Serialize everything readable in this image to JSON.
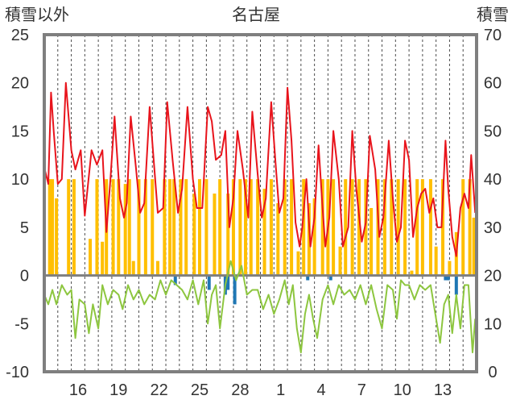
{
  "chart_data": {
    "type": "bar+line",
    "title": "名古屋",
    "left_axis_label": "積雪以外",
    "right_axis_label": "積雪",
    "left_ylim": [
      -10,
      25
    ],
    "left_ticks": [
      25,
      20,
      15,
      10,
      5,
      0,
      -5,
      -10
    ],
    "right_ylim": [
      0,
      70
    ],
    "right_ticks": [
      70,
      60,
      50,
      40,
      30,
      20,
      10,
      0
    ],
    "x_tick_labels": [
      "16",
      "19",
      "22",
      "25",
      "28",
      "1",
      "4",
      "7",
      "10",
      "13"
    ],
    "x_tick_days": [
      3,
      6,
      9,
      12,
      15,
      18,
      21,
      24,
      27,
      30
    ],
    "days": 32,
    "grid": "vertical-dashed-daily",
    "colors": {
      "max_temp": "#e8141c",
      "min_temp": "#8dc63f",
      "sunshine": "#ffbf00",
      "precip": "#1f77b4",
      "snow": "#7030a0",
      "frame": "#7f7f7f"
    },
    "series": [
      {
        "key": "max_temp",
        "axis": "left",
        "kind": "line",
        "x": [
          0.0,
          0.3,
          0.5,
          0.7,
          1.0,
          1.3,
          1.6,
          2.0,
          2.3,
          2.7,
          3.0,
          3.5,
          3.9,
          4.3,
          4.6,
          4.9,
          5.2,
          5.6,
          5.9,
          6.1,
          6.4,
          6.8,
          7.1,
          7.4,
          7.8,
          8.1,
          8.4,
          8.8,
          9.1,
          9.5,
          9.9,
          10.2,
          10.6,
          11.0,
          11.3,
          11.7,
          12.1,
          12.4,
          12.7,
          13.1,
          13.4,
          13.7,
          14.0,
          14.3,
          14.7,
          15.1,
          15.4,
          15.8,
          16.1,
          16.4,
          16.8,
          17.1,
          17.4,
          17.7,
          18.0,
          18.3,
          18.6,
          18.9,
          19.1,
          19.4,
          19.7,
          20.0,
          20.3,
          20.6,
          20.8,
          21.1,
          21.4,
          21.8,
          22.1,
          22.5,
          22.8,
          23.1,
          23.5,
          23.8,
          24.1,
          24.5,
          24.8,
          25.1,
          25.5,
          25.8,
          26.1,
          26.4,
          26.7,
          27.0,
          27.3,
          27.6,
          27.9,
          28.2,
          28.5,
          28.8,
          29.1,
          29.4,
          29.7,
          29.9,
          30.2,
          30.5,
          30.8,
          31.1,
          31.4,
          31.6,
          31.9
        ],
        "values": [
          11.2,
          9.5,
          19.0,
          15,
          9.5,
          10,
          20,
          13,
          11,
          13,
          6.2,
          13,
          11.5,
          13,
          4.5,
          10,
          16.5,
          8,
          6,
          7.5,
          16.5,
          11,
          6.5,
          7.5,
          17.5,
          12,
          6.5,
          7,
          18,
          12,
          6.5,
          9,
          17.5,
          10,
          7,
          7,
          17.5,
          16,
          12,
          12.5,
          15,
          5,
          8,
          15,
          11,
          6,
          17,
          10.5,
          6,
          8,
          18,
          12,
          6.5,
          8,
          19.5,
          14,
          5.5,
          3,
          5,
          10,
          3,
          6,
          13.5,
          7,
          3,
          6,
          15,
          10,
          3,
          5,
          15,
          9,
          3.5,
          5.5,
          14.5,
          11,
          4,
          6,
          14,
          8,
          3.5,
          5,
          14,
          12,
          4,
          7,
          8.5,
          9,
          6.5,
          8,
          5,
          5,
          14,
          9,
          4,
          2,
          7,
          8.5,
          7,
          12.5,
          6.5
        ]
      },
      {
        "key": "min_temp",
        "axis": "left",
        "kind": "line",
        "x": [
          0.0,
          0.3,
          0.6,
          0.9,
          1.3,
          1.7,
          2.0,
          2.3,
          2.6,
          3.0,
          3.3,
          3.6,
          4.0,
          4.3,
          4.7,
          5.1,
          5.5,
          5.8,
          6.2,
          6.6,
          7.0,
          7.4,
          7.8,
          8.2,
          8.6,
          9.0,
          9.4,
          9.8,
          10.2,
          10.6,
          11.0,
          11.4,
          11.8,
          12.1,
          12.4,
          12.7,
          13.0,
          13.4,
          13.8,
          14.2,
          14.6,
          15.0,
          15.4,
          15.8,
          16.2,
          16.6,
          17.0,
          17.4,
          17.8,
          18.1,
          18.4,
          18.7,
          19.0,
          19.3,
          19.6,
          19.9,
          20.2,
          20.6,
          21.0,
          21.4,
          21.8,
          22.2,
          22.6,
          23.0,
          23.4,
          23.8,
          24.2,
          24.6,
          25.0,
          25.4,
          25.8,
          26.1,
          26.4,
          26.7,
          27.0,
          27.4,
          27.8,
          28.2,
          28.6,
          29.0,
          29.3,
          29.6,
          29.9,
          30.2,
          30.5,
          30.8,
          31.1,
          31.4,
          31.7,
          31.9
        ],
        "values": [
          -2,
          -3,
          -1.5,
          -3,
          -1,
          -2,
          -1.5,
          -6.5,
          -2.5,
          -3,
          -6,
          -3,
          -5.5,
          -1,
          -3,
          -1.5,
          -2,
          -3.5,
          -1,
          -2.5,
          -1.5,
          -3,
          -2,
          -2.5,
          -0.5,
          -2,
          -0.5,
          -1,
          -1.5,
          -2.5,
          -0.5,
          -3,
          -0.5,
          -5,
          -2,
          -1,
          -5.5,
          -1,
          1.5,
          -0.5,
          1,
          -2,
          -1.5,
          -1.5,
          -3.5,
          -2,
          -4,
          -2.5,
          -0.5,
          -3,
          -1,
          -5.5,
          -8,
          -4,
          -2,
          -4.5,
          -6.5,
          -2.5,
          -1,
          -3,
          -1,
          -2,
          -1.5,
          -2.5,
          -1,
          -3,
          -1,
          -3.5,
          -5.5,
          -1,
          -1.5,
          -4.5,
          -0.5,
          -1,
          -1,
          -2.5,
          -1,
          -1.5,
          -1,
          -4.5,
          -7,
          -3,
          -2,
          -6,
          -2,
          -5.5,
          -1,
          -1,
          -8,
          -4.5
        ]
      },
      {
        "key": "sunshine",
        "axis": "left",
        "kind": "bar",
        "x": [
          0.4,
          0.6,
          0.9,
          1.8,
          2.2,
          3.4,
          3.9,
          4.3,
          4.6,
          5.1,
          5.5,
          6.0,
          6.3,
          6.6,
          7.0,
          7.5,
          8.0,
          8.4,
          8.9,
          9.3,
          9.6,
          10.1,
          10.5,
          11.1,
          11.5,
          12.0,
          12.6,
          13.0,
          13.6,
          14.0,
          14.5,
          14.9,
          15.3,
          15.8,
          16.3,
          16.8,
          17.3,
          17.8,
          18.3,
          18.8,
          19.2,
          19.6,
          20.0,
          20.6,
          21.0,
          21.4,
          21.9,
          22.3,
          22.8,
          23.3,
          23.8,
          24.2,
          24.7,
          25.2,
          25.7,
          26.2,
          26.7,
          27.2,
          27.6,
          28.0,
          28.6,
          29.0,
          29.5,
          30.0,
          30.5,
          31.0,
          31.5,
          31.8
        ],
        "values": [
          10,
          10,
          8,
          10,
          10,
          3.8,
          10,
          3.5,
          10,
          10,
          10,
          9.5,
          10,
          1.5,
          10,
          10,
          10,
          1.5,
          10,
          10,
          10,
          10,
          10,
          8.5,
          10,
          10,
          8.5,
          10,
          8.5,
          10,
          10,
          10,
          10,
          10,
          9,
          10,
          7.5,
          10,
          10,
          2.5,
          10,
          7.5,
          8,
          10,
          10,
          10,
          3,
          10,
          10,
          10,
          10,
          7,
          10,
          10,
          10,
          10,
          10,
          0.5,
          10,
          10,
          10,
          3,
          10,
          1.5,
          4.5,
          10,
          10,
          6
        ]
      },
      {
        "key": "precip",
        "axis": "left",
        "kind": "bar",
        "x": [
          9.7,
          12.2,
          13.4,
          13.6,
          14.1,
          19.5,
          21.2,
          29.7,
          29.9,
          30.5
        ],
        "values": [
          -1,
          -1.5,
          -2,
          -1.5,
          -3,
          -0.5,
          -0.5,
          -0.5,
          -0.5,
          -2
        ]
      },
      {
        "key": "snow",
        "axis": "right",
        "kind": "line",
        "x": [
          13.2,
          31.5
        ],
        "values": [
          0,
          0
        ]
      }
    ]
  }
}
